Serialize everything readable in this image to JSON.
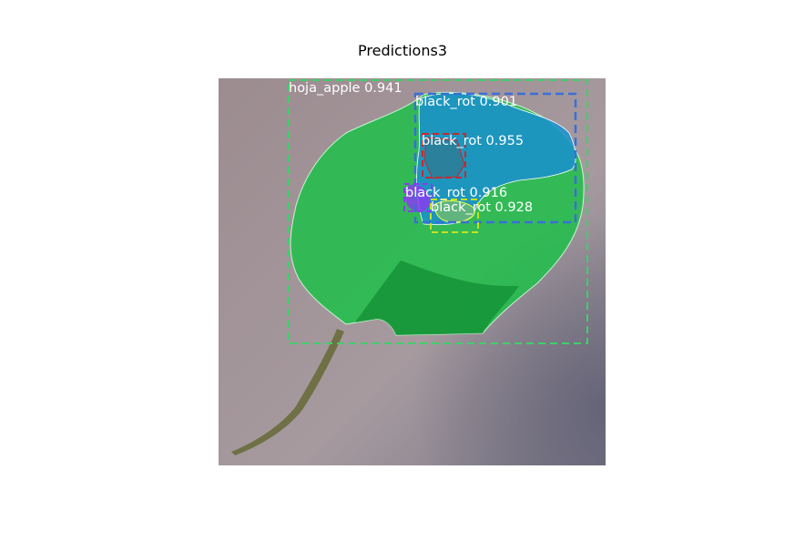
{
  "figure": {
    "title": "Predictions3"
  },
  "detections": [
    {
      "label": "hoja_apple 0.941",
      "color": "#3fcf6a"
    },
    {
      "label": "black_rot 0.901",
      "color": "#3a6fd8"
    },
    {
      "label": "black_rot 0.955",
      "color": "#c8282e"
    },
    {
      "label": "black_rot 0.916",
      "color": "#8a3cf0"
    },
    {
      "label": "black_rot 0.928",
      "color": "#c8e01e"
    }
  ]
}
